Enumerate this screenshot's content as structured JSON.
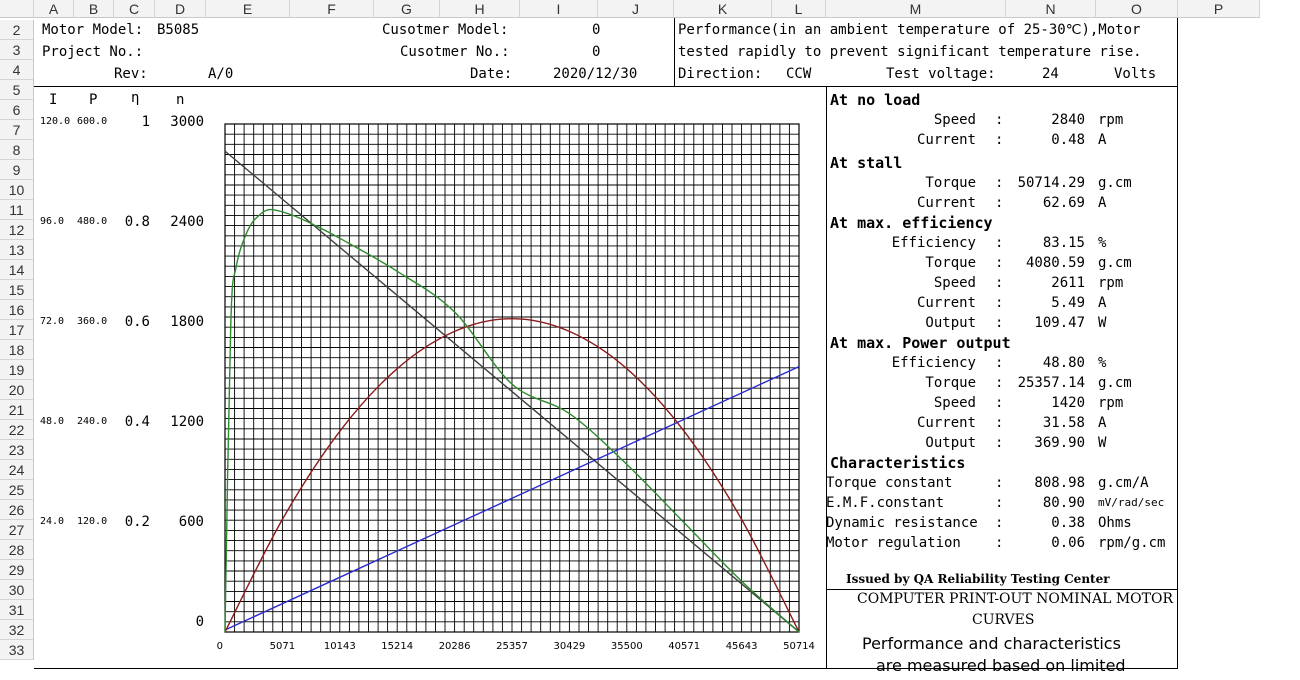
{
  "columns": [
    "A",
    "B",
    "C",
    "D",
    "E",
    "F",
    "G",
    "H",
    "I",
    "J",
    "K",
    "L",
    "M",
    "N",
    "O",
    "P"
  ],
  "rows": [
    "2",
    "3",
    "4",
    "5",
    "6",
    "7",
    "8",
    "9",
    "10",
    "11",
    "12",
    "13",
    "14",
    "15",
    "16",
    "17",
    "18",
    "19",
    "20",
    "21",
    "22",
    "23",
    "24",
    "25",
    "26",
    "27",
    "28",
    "29",
    "30",
    "31",
    "32",
    "33"
  ],
  "header": {
    "motor_model_label": "Motor Model:",
    "motor_model": "B5085",
    "project_no_label": "Project No.:",
    "rev_label": "Rev:",
    "rev": "A/0",
    "customer_model_label": "Cusotmer Model:",
    "customer_model": "0",
    "customer_no_label": "Cusotmer No.:",
    "customer_no": "0",
    "date_label": "Date:",
    "date": "2020/12/30",
    "performance_line1": "Performance(in an ambient temperature of 25-30℃),Motor",
    "performance_line2": "tested rapidly to prevent significant temperature rise.",
    "direction_label": "Direction:",
    "direction": "CCW",
    "test_voltage_label": "Test voltage:",
    "test_voltage": "24",
    "volts": "Volts"
  },
  "axis_headers": {
    "I": "I",
    "P": "P",
    "eta": "η",
    "n": "n"
  },
  "specs": {
    "no_load_title": "At no load",
    "no_load": [
      {
        "label": "Speed",
        "sep": ":",
        "value": "2840",
        "unit": "rpm"
      },
      {
        "label": "Current",
        "sep": ":",
        "value": "0.48",
        "unit": "A"
      }
    ],
    "stall_title": "At stall",
    "stall": [
      {
        "label": "Torque",
        "sep": ":",
        "value": "50714.29",
        "unit": "g.cm"
      },
      {
        "label": "Current",
        "sep": ":",
        "value": "62.69",
        "unit": "A"
      }
    ],
    "max_eff_title": "At max. efficiency",
    "max_eff": [
      {
        "label": "Efficiency",
        "sep": ":",
        "value": "83.15",
        "unit": "%"
      },
      {
        "label": "Torque",
        "sep": ":",
        "value": "4080.59",
        "unit": "g.cm"
      },
      {
        "label": "Speed",
        "sep": ":",
        "value": "2611",
        "unit": "rpm"
      },
      {
        "label": "Current",
        "sep": ":",
        "value": "5.49",
        "unit": "A"
      },
      {
        "label": "Output",
        "sep": ":",
        "value": "109.47",
        "unit": "W"
      }
    ],
    "max_power_title": "At max. Power output",
    "max_power": [
      {
        "label": "Efficiency",
        "sep": ":",
        "value": "48.80",
        "unit": "%"
      },
      {
        "label": "Torque",
        "sep": ":",
        "value": "25357.14",
        "unit": "g.cm"
      },
      {
        "label": "Speed",
        "sep": ":",
        "value": "1420",
        "unit": "rpm"
      },
      {
        "label": "Current",
        "sep": ":",
        "value": "31.58",
        "unit": "A"
      },
      {
        "label": "Output",
        "sep": ":",
        "value": "369.90",
        "unit": "W"
      }
    ],
    "char_title": "Characteristics",
    "characteristics": [
      {
        "label": "Torque constant",
        "sep": ":",
        "value": "808.98",
        "unit": "g.cm/A"
      },
      {
        "label": "E.M.F.constant",
        "sep": ":",
        "value": "80.90",
        "unit": "mV/rad/sec"
      },
      {
        "label": "Dynamic resistance",
        "sep": ":",
        "value": "0.38",
        "unit": "Ohms"
      },
      {
        "label": "Motor regulation",
        "sep": ":",
        "value": "0.06",
        "unit": "rpm/g.cm"
      }
    ]
  },
  "footer": {
    "issued": "Issued by QA Reliability Testing Center",
    "line1": "COMPUTER PRINT-OUT NOMINAL MOTOR",
    "line2": "CURVES",
    "line3": "Performance and characteristics",
    "line4": "are measured based on limited"
  },
  "chart_data": {
    "type": "line",
    "x_ticks": [
      "0",
      "5071",
      "10143",
      "15214",
      "20286",
      "25357",
      "30429",
      "35500",
      "40571",
      "45643",
      "50714"
    ],
    "xlim": [
      0,
      50714
    ],
    "y_axes": {
      "I": {
        "ticks": [
          "120.0",
          "96.0",
          "72.0",
          "48.0",
          "24.0"
        ],
        "range": [
          0,
          120
        ]
      },
      "P": {
        "ticks": [
          "600.0",
          "480.0",
          "360.0",
          "240.0",
          "120.0"
        ],
        "range": [
          0,
          600
        ]
      },
      "eta": {
        "ticks": [
          "1",
          "0.8",
          "0.6",
          "0.4",
          "0.2"
        ],
        "range": [
          0,
          1
        ]
      },
      "n": {
        "ticks": [
          "3000",
          "2400",
          "1800",
          "1200",
          "600",
          "0"
        ],
        "range": [
          0,
          3000
        ]
      }
    },
    "grid": true,
    "series": [
      {
        "key": "speed",
        "color": "#404040",
        "axis": "n",
        "x": [
          0,
          50714
        ],
        "y": [
          2840,
          0
        ]
      },
      {
        "key": "current",
        "color": "#2b2bd0",
        "axis": "I",
        "x": [
          0,
          50714
        ],
        "y": [
          0.48,
          62.69
        ]
      },
      {
        "key": "output",
        "color": "#8b1a1a",
        "axis": "P",
        "x": [
          0,
          5071,
          10143,
          15214,
          20286,
          25357,
          30429,
          35500,
          40571,
          45643,
          50714
        ],
        "y": [
          0,
          133,
          237,
          311,
          355,
          370,
          355,
          311,
          237,
          133,
          0
        ]
      },
      {
        "key": "efficiency",
        "color": "#2e8b2e",
        "axis": "eta",
        "x": [
          0,
          500,
          1000,
          2000,
          3000,
          4080,
          6000,
          8000,
          10143,
          15214,
          20286,
          25357,
          30429,
          35500,
          40571,
          45643,
          50714
        ],
        "y": [
          0,
          0.6,
          0.72,
          0.79,
          0.82,
          0.8315,
          0.82,
          0.8,
          0.775,
          0.71,
          0.63,
          0.488,
          0.43,
          0.33,
          0.215,
          0.1,
          0
        ]
      }
    ]
  }
}
